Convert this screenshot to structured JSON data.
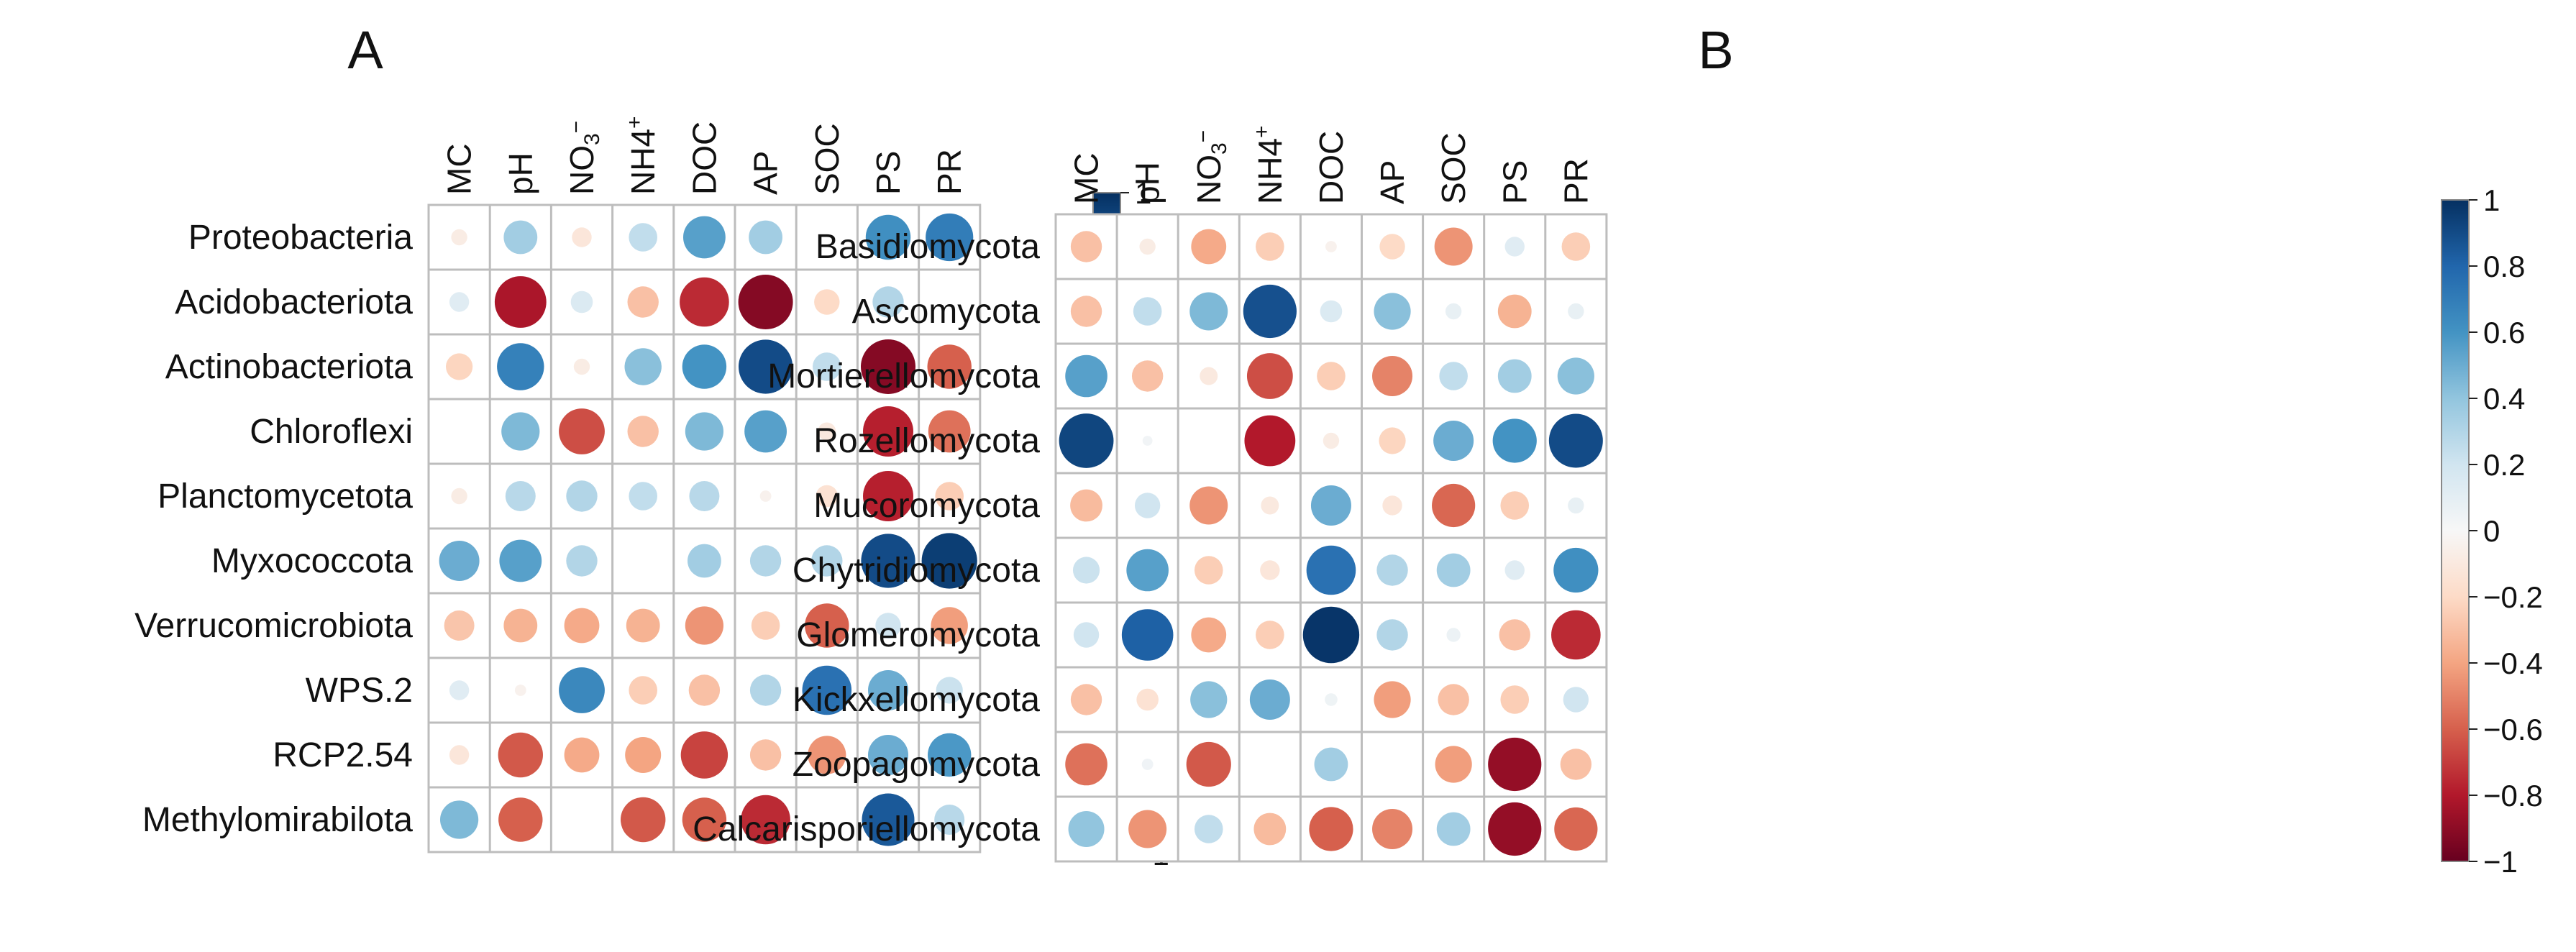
{
  "panels": [
    {
      "letter": "A",
      "colorbar": {
        "ticks": [
          "1",
          "0.8",
          "0.6",
          "0.4",
          "0.2",
          "0",
          "−0.2",
          "−0.4",
          "−0.6",
          "−0.8",
          "−1"
        ]
      }
    },
    {
      "letter": "B",
      "colorbar": {
        "ticks": [
          "1",
          "0.8",
          "0.6",
          "0.4",
          "0.2",
          "0",
          "−0.2",
          "−0.4",
          "−0.6",
          "−0.8",
          "−1"
        ]
      }
    }
  ],
  "chart_data": [
    {
      "type": "heatmap",
      "panel": "A",
      "columns": [
        "MC",
        "pH",
        "NO3−",
        "NH4+",
        "DOC",
        "AP",
        "SOC",
        "PS",
        "PR"
      ],
      "rows": [
        "Proteobacteria",
        "Acidobacteriota",
        "Actinobacteriota",
        "Chloroflexi",
        "Planctomycetota",
        "Myxococcota",
        "Verrucomicrobiota",
        "WPS.2",
        "RCP2.54",
        "Methylomirabilota"
      ],
      "values": [
        [
          -0.08,
          0.35,
          -0.12,
          0.25,
          0.55,
          0.35,
          0.0,
          0.62,
          0.7
        ],
        [
          0.12,
          -0.82,
          0.15,
          -0.3,
          -0.75,
          -0.92,
          -0.2,
          0.3,
          0.0
        ],
        [
          -0.22,
          0.68,
          -0.08,
          0.42,
          0.6,
          0.9,
          0.25,
          -0.92,
          -0.6
        ],
        [
          0.0,
          0.45,
          -0.65,
          -0.3,
          0.45,
          0.55,
          -0.1,
          -0.78,
          -0.55
        ],
        [
          -0.08,
          0.28,
          0.3,
          0.25,
          0.28,
          -0.04,
          -0.15,
          -0.78,
          -0.25
        ],
        [
          0.5,
          0.55,
          0.3,
          0.0,
          0.35,
          0.3,
          0.3,
          0.9,
          0.95
        ],
        [
          -0.28,
          -0.35,
          -0.38,
          -0.35,
          -0.45,
          -0.25,
          -0.6,
          0.2,
          -0.42
        ],
        [
          0.12,
          -0.04,
          0.65,
          -0.25,
          -0.3,
          0.3,
          0.75,
          0.5,
          0.22
        ],
        [
          -0.12,
          -0.62,
          -0.38,
          -0.4,
          -0.68,
          -0.3,
          -0.45,
          0.5,
          0.58
        ],
        [
          0.45,
          -0.6,
          0.0,
          -0.62,
          -0.6,
          -0.75,
          0.0,
          0.85,
          0.28
        ]
      ]
    },
    {
      "type": "heatmap",
      "panel": "B",
      "columns": [
        "MC",
        "pH",
        "NO3−",
        "NH4+",
        "DOC",
        "AP",
        "SOC",
        "PS",
        "PR"
      ],
      "rows": [
        "Basidiomycota",
        "Ascomycota",
        "Mortierellomycota",
        "Rozellomycota",
        "Mucoromycota",
        "Chytridiomycota",
        "Glomeromycota",
        "Kickxellomycota",
        "Zoopagomycota",
        "Calcarisporiellomycota"
      ],
      "values": [
        [
          -0.3,
          -0.08,
          -0.38,
          -0.25,
          -0.04,
          -0.2,
          -0.45,
          0.12,
          -0.25
        ],
        [
          -0.3,
          0.25,
          0.45,
          0.88,
          0.15,
          0.42,
          0.08,
          -0.35,
          0.08
        ],
        [
          0.55,
          -0.3,
          -0.1,
          -0.65,
          -0.25,
          -0.5,
          0.25,
          0.35,
          0.42
        ],
        [
          0.92,
          0.03,
          0.0,
          -0.8,
          -0.08,
          -0.22,
          0.5,
          0.6,
          0.9
        ],
        [
          -0.32,
          0.2,
          -0.45,
          -0.1,
          0.5,
          -0.12,
          -0.58,
          -0.25,
          0.08
        ],
        [
          0.22,
          0.55,
          -0.25,
          -0.12,
          0.75,
          0.3,
          0.35,
          0.12,
          0.62
        ],
        [
          0.2,
          0.82,
          -0.38,
          -0.25,
          0.98,
          0.3,
          0.06,
          -0.3,
          -0.75
        ],
        [
          -0.3,
          -0.15,
          0.42,
          0.5,
          0.05,
          -0.42,
          -0.3,
          -0.25,
          0.2
        ],
        [
          -0.55,
          0.04,
          -0.62,
          0.0,
          0.35,
          0.0,
          -0.42,
          -0.88,
          -0.3
        ],
        [
          0.4,
          -0.45,
          0.25,
          -0.32,
          -0.6,
          -0.5,
          0.35,
          -0.88,
          -0.58
        ]
      ],
      "colorbar_range": [
        -1,
        1
      ]
    }
  ]
}
